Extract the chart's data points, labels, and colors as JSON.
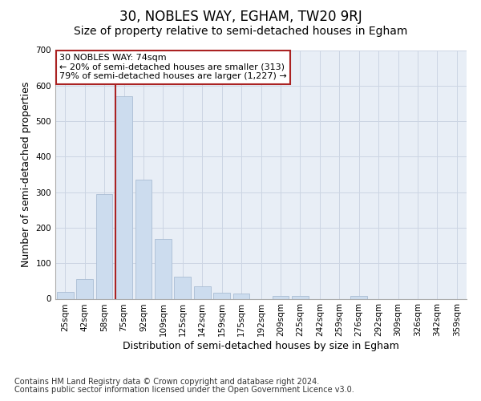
{
  "title": "30, NOBLES WAY, EGHAM, TW20 9RJ",
  "subtitle": "Size of property relative to semi-detached houses in Egham",
  "xlabel": "Distribution of semi-detached houses by size in Egham",
  "ylabel": "Number of semi-detached properties",
  "footnote1": "Contains HM Land Registry data © Crown copyright and database right 2024.",
  "footnote2": "Contains public sector information licensed under the Open Government Licence v3.0.",
  "categories": [
    "25sqm",
    "42sqm",
    "58sqm",
    "75sqm",
    "92sqm",
    "109sqm",
    "125sqm",
    "142sqm",
    "159sqm",
    "175sqm",
    "192sqm",
    "209sqm",
    "225sqm",
    "242sqm",
    "259sqm",
    "276sqm",
    "292sqm",
    "309sqm",
    "326sqm",
    "342sqm",
    "359sqm"
  ],
  "values": [
    20,
    55,
    295,
    570,
    335,
    168,
    62,
    35,
    18,
    15,
    0,
    8,
    8,
    0,
    0,
    8,
    0,
    0,
    0,
    0,
    0
  ],
  "bar_color": "#ccdcee",
  "bar_edge_color": "#aabdd4",
  "grid_color": "#ccd5e3",
  "vline_color": "#aa2222",
  "annotation_text": "30 NOBLES WAY: 74sqm\n← 20% of semi-detached houses are smaller (313)\n79% of semi-detached houses are larger (1,227) →",
  "annotation_box_color": "#ffffff",
  "annotation_box_edge": "#aa2222",
  "ylim": [
    0,
    700
  ],
  "yticks": [
    0,
    100,
    200,
    300,
    400,
    500,
    600,
    700
  ],
  "background_color": "#e8eef6",
  "title_fontsize": 12,
  "subtitle_fontsize": 10,
  "axis_label_fontsize": 9,
  "tick_fontsize": 7.5,
  "annotation_fontsize": 8,
  "footnote_fontsize": 7
}
